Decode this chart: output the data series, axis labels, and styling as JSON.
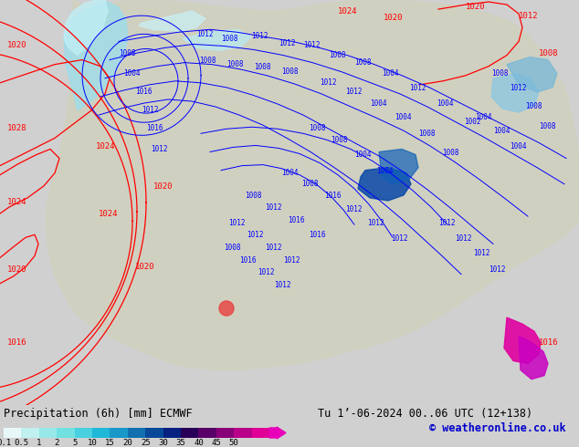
{
  "title_left": "Precipitation (6h) [mm] ECMWF",
  "title_right": "Tu 1’-06-2024 00..06 UTC (12+138)",
  "copyright": "© weatheronline.co.uk",
  "colorbar_colors": [
    "#e8f8f8",
    "#c0f0f0",
    "#98e8e8",
    "#70e0e0",
    "#48d0e0",
    "#20b8d8",
    "#1898c8",
    "#1070b0",
    "#084898",
    "#082080",
    "#280058",
    "#580068",
    "#880078",
    "#b80088",
    "#e00098",
    "#e800b8"
  ],
  "colorbar_tick_labels": [
    "0.1",
    "0.5",
    "1",
    "2",
    "5",
    "10",
    "15",
    "20",
    "25",
    "30",
    "35",
    "40",
    "45",
    "50"
  ],
  "footer_bg": "#d0d0d0",
  "text_color": "#000000",
  "copyright_color": "#0000cc",
  "map_bg_color": "#b8c8d8",
  "land_color": "#d0d0c0",
  "ocean_color": "#b0c0d0"
}
